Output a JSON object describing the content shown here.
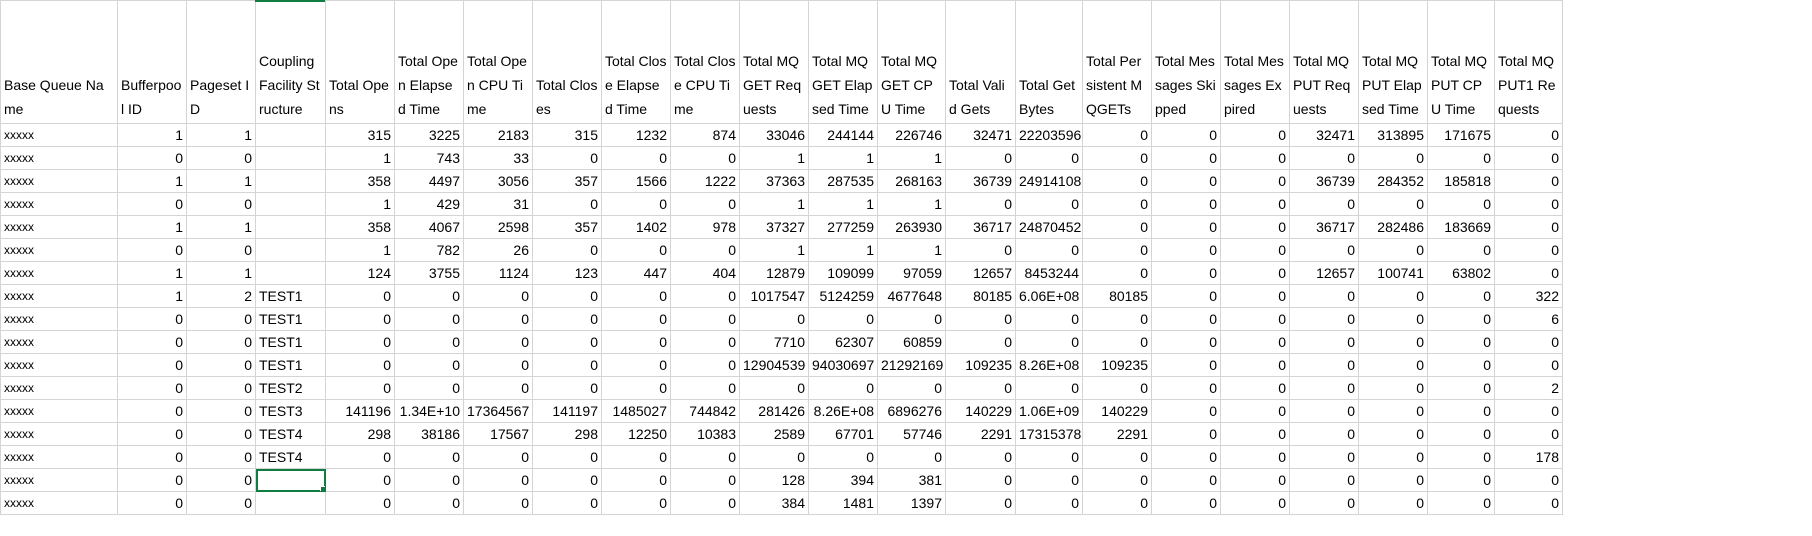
{
  "columns": [
    "Base Queue Name",
    "Bufferpoo l ID",
    "Pageset ID",
    "Coupling Facility Structure",
    "Total Opens",
    "Total Open Elapsed Time",
    "Total Open CPU Time",
    "Total Closes",
    "Total Close Elapsed Time",
    "Total Close CPU Time",
    "Total MQGET Requests",
    "Total MQGET Elapsed Time",
    "Total MQGET CPU Time",
    "Total Valid Gets",
    "Total Get Bytes",
    "Total Persistent MQGETs",
    "Total Messages Skipped",
    "Total Messages Expired",
    "Total MQPUT Requests",
    "Total MQPUT Elapsed Time",
    "Total MQPUT CPU Time",
    "Total MQPUT1 Requests"
  ],
  "rows": [
    [
      "xxxxx",
      "1",
      "1",
      "",
      "315",
      "3225",
      "2183",
      "315",
      "1232",
      "874",
      "33046",
      "244144",
      "226746",
      "32471",
      "22203596",
      "0",
      "0",
      "0",
      "32471",
      "313895",
      "171675",
      "0"
    ],
    [
      "xxxxx",
      "0",
      "0",
      "",
      "1",
      "743",
      "33",
      "0",
      "0",
      "0",
      "1",
      "1",
      "1",
      "0",
      "0",
      "0",
      "0",
      "0",
      "0",
      "0",
      "0",
      "0"
    ],
    [
      "xxxxx",
      "1",
      "1",
      "",
      "358",
      "4497",
      "3056",
      "357",
      "1566",
      "1222",
      "37363",
      "287535",
      "268163",
      "36739",
      "24914108",
      "0",
      "0",
      "0",
      "36739",
      "284352",
      "185818",
      "0"
    ],
    [
      "xxxxx",
      "0",
      "0",
      "",
      "1",
      "429",
      "31",
      "0",
      "0",
      "0",
      "1",
      "1",
      "1",
      "0",
      "0",
      "0",
      "0",
      "0",
      "0",
      "0",
      "0",
      "0"
    ],
    [
      "xxxxx",
      "1",
      "1",
      "",
      "358",
      "4067",
      "2598",
      "357",
      "1402",
      "978",
      "37327",
      "277259",
      "263930",
      "36717",
      "24870452",
      "0",
      "0",
      "0",
      "36717",
      "282486",
      "183669",
      "0"
    ],
    [
      "xxxxx",
      "0",
      "0",
      "",
      "1",
      "782",
      "26",
      "0",
      "0",
      "0",
      "1",
      "1",
      "1",
      "0",
      "0",
      "0",
      "0",
      "0",
      "0",
      "0",
      "0",
      "0"
    ],
    [
      "xxxxx",
      "1",
      "1",
      "",
      "124",
      "3755",
      "1124",
      "123",
      "447",
      "404",
      "12879",
      "109099",
      "97059",
      "12657",
      "8453244",
      "0",
      "0",
      "0",
      "12657",
      "100741",
      "63802",
      "0"
    ],
    [
      "xxxxx",
      "1",
      "2",
      "TEST1",
      "0",
      "0",
      "0",
      "0",
      "0",
      "0",
      "1017547",
      "5124259",
      "4677648",
      "80185",
      "6.06E+08",
      "80185",
      "0",
      "0",
      "0",
      "0",
      "0",
      "322"
    ],
    [
      "xxxxx",
      "0",
      "0",
      "TEST1",
      "0",
      "0",
      "0",
      "0",
      "0",
      "0",
      "0",
      "0",
      "0",
      "0",
      "0",
      "0",
      "0",
      "0",
      "0",
      "0",
      "0",
      "6"
    ],
    [
      "xxxxx",
      "0",
      "0",
      "TEST1",
      "0",
      "0",
      "0",
      "0",
      "0",
      "0",
      "7710",
      "62307",
      "60859",
      "0",
      "0",
      "0",
      "0",
      "0",
      "0",
      "0",
      "0",
      "0"
    ],
    [
      "xxxxx",
      "0",
      "0",
      "TEST1",
      "0",
      "0",
      "0",
      "0",
      "0",
      "0",
      "12904539",
      "94030697",
      "21292169",
      "109235",
      "8.26E+08",
      "109235",
      "0",
      "0",
      "0",
      "0",
      "0",
      "0"
    ],
    [
      "xxxxx",
      "0",
      "0",
      "TEST2",
      "0",
      "0",
      "0",
      "0",
      "0",
      "0",
      "0",
      "0",
      "0",
      "0",
      "0",
      "0",
      "0",
      "0",
      "0",
      "0",
      "0",
      "2"
    ],
    [
      "xxxxx",
      "0",
      "0",
      "TEST3",
      "141196",
      "1.34E+10",
      "17364567",
      "141197",
      "1485027",
      "744842",
      "281426",
      "8.26E+08",
      "6896276",
      "140229",
      "1.06E+09",
      "140229",
      "0",
      "0",
      "0",
      "0",
      "0",
      "0"
    ],
    [
      "xxxxx",
      "0",
      "0",
      "TEST4",
      "298",
      "38186",
      "17567",
      "298",
      "12250",
      "10383",
      "2589",
      "67701",
      "57746",
      "2291",
      "17315378",
      "2291",
      "0",
      "0",
      "0",
      "0",
      "0",
      "0"
    ],
    [
      "xxxxx",
      "0",
      "0",
      "TEST4",
      "0",
      "0",
      "0",
      "0",
      "0",
      "0",
      "0",
      "0",
      "0",
      "0",
      "0",
      "0",
      "0",
      "0",
      "0",
      "0",
      "0",
      "178"
    ],
    [
      "xxxxx",
      "0",
      "0",
      "",
      "0",
      "0",
      "0",
      "0",
      "0",
      "0",
      "128",
      "394",
      "381",
      "0",
      "0",
      "0",
      "0",
      "0",
      "0",
      "0",
      "0",
      "0"
    ],
    [
      "xxxxx",
      "0",
      "0",
      "",
      "0",
      "0",
      "0",
      "0",
      "0",
      "0",
      "384",
      "1481",
      "1397",
      "0",
      "0",
      "0",
      "0",
      "0",
      "0",
      "0",
      "0",
      "0"
    ]
  ],
  "active_cell": {
    "row": 15,
    "col": 3
  },
  "colors": {
    "gridline": "#d4d4d4",
    "selection": "#107c41"
  }
}
